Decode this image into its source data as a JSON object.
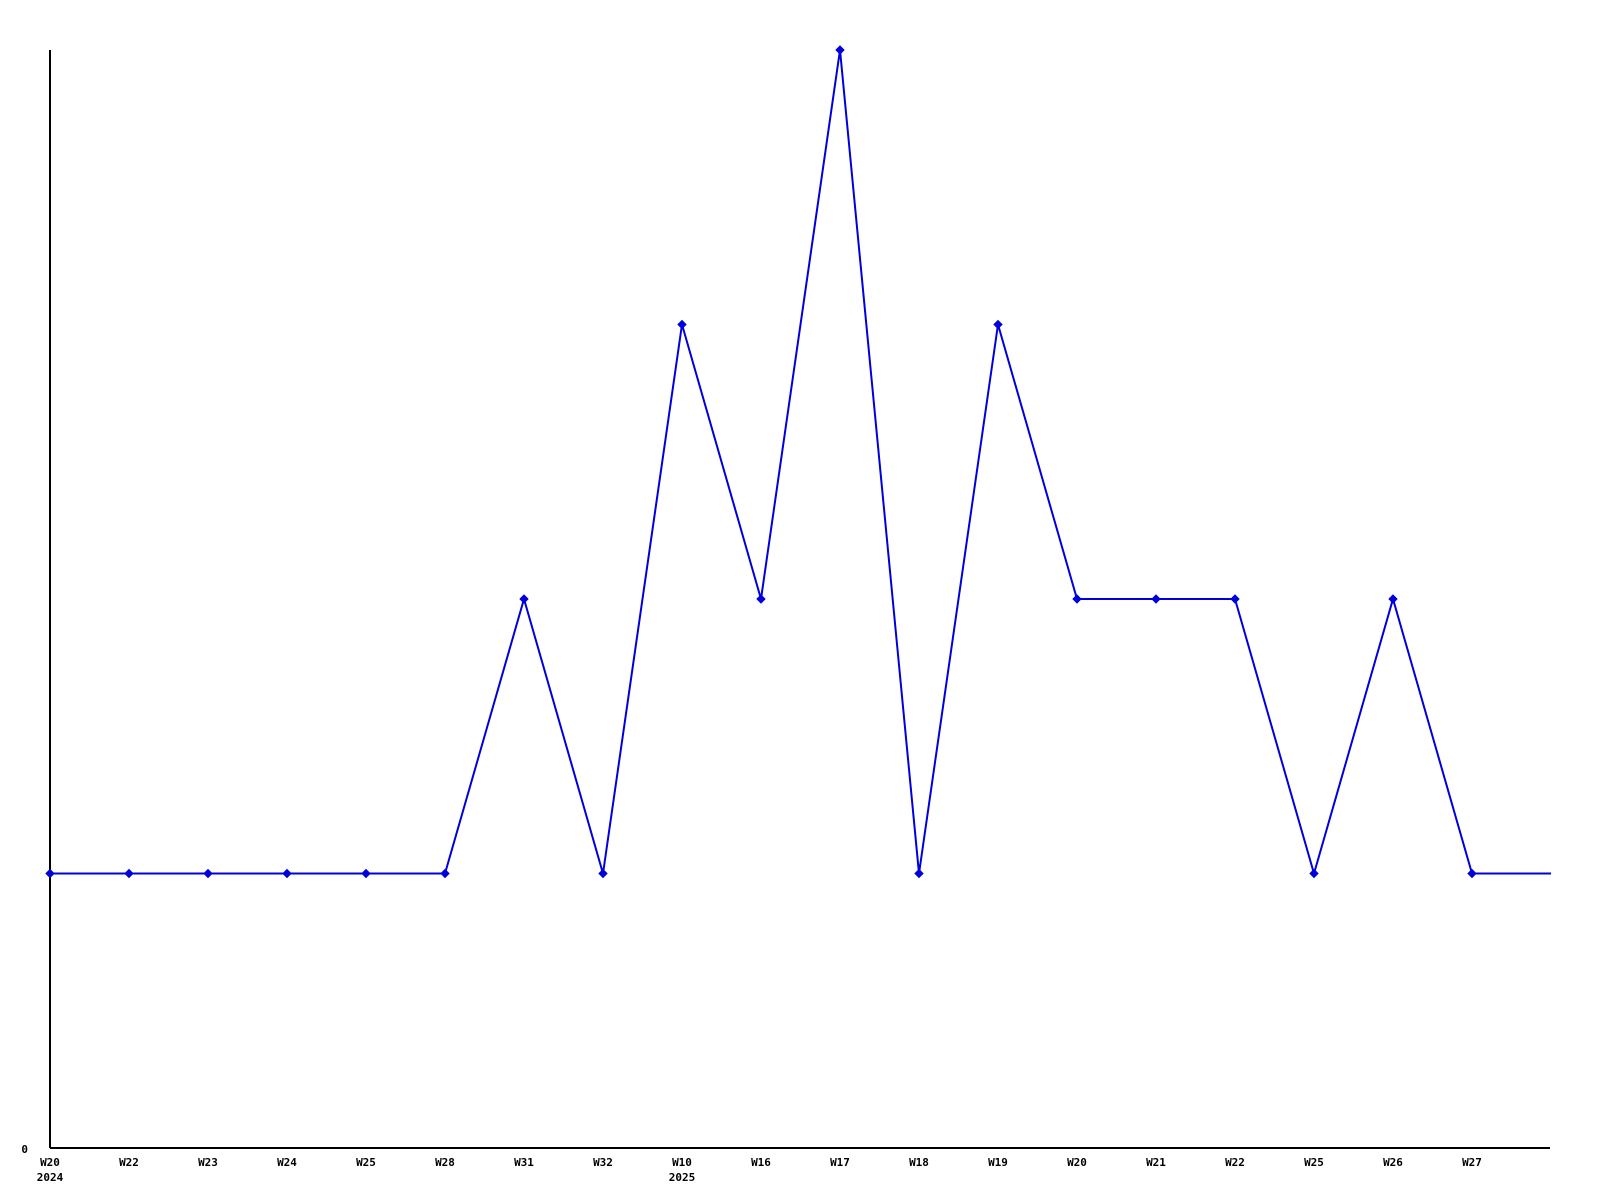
{
  "page": {
    "background": "#ffffff"
  },
  "chart_data": {
    "type": "line",
    "title": null,
    "xlabel": "",
    "ylabel": "",
    "categories": [
      "W20",
      "W22",
      "W23",
      "W24",
      "W25",
      "W28",
      "W31",
      "W32",
      "W10",
      "W16",
      "W17",
      "W18",
      "W19",
      "W20",
      "W21",
      "W22",
      "W25",
      "W26",
      "W27"
    ],
    "year_markers": [
      {
        "index": 0,
        "label": "2024"
      },
      {
        "index": 8,
        "label": "2025"
      }
    ],
    "values": [
      1,
      1,
      1,
      1,
      1,
      1,
      2,
      1,
      3,
      2,
      4,
      1,
      3,
      2,
      2,
      2,
      1,
      2,
      1
    ],
    "line_extends_past_last_point": true,
    "trailing_value": 1,
    "y_axis": {
      "zero_label": "0",
      "min": 0,
      "max": 4,
      "tick_labels_shown": [
        "0"
      ]
    },
    "grid": false,
    "legend": null,
    "marker_style": "plus",
    "colors": {
      "line": "#0000dd",
      "marker": "#0000dd",
      "axis": "#000000",
      "text": "#000000",
      "background": "#ffffff"
    }
  }
}
